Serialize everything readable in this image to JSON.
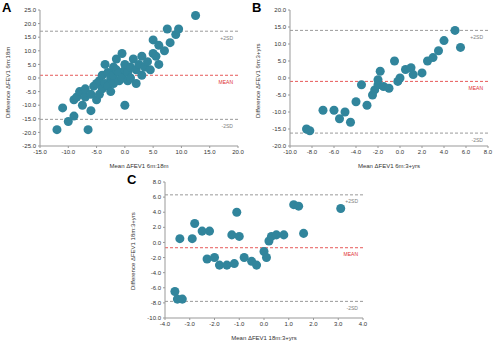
{
  "chart_data": [
    {
      "type": "scatter",
      "title": "A",
      "x_label": "Mean ΔFEV1 6m:18m",
      "y_label": "Difference ΔFEV1 6m:18m",
      "color": "#31859c",
      "marker": "circle",
      "xlim": [
        -15,
        20
      ],
      "xticks": [
        {
          "value": -15,
          "label": "-15.0"
        },
        {
          "value": -10,
          "label": "-10.0"
        },
        {
          "value": -5,
          "label": "-5.0"
        },
        {
          "value": 0,
          "label": "0.0"
        },
        {
          "value": 5,
          "label": "5.0"
        },
        {
          "value": 10,
          "label": "10.0"
        },
        {
          "value": 15,
          "label": "15.0"
        },
        {
          "value": 20,
          "label": "20.0"
        }
      ],
      "ylim": [
        -25,
        25
      ],
      "yticks": [
        {
          "value": -25,
          "label": "-25.0"
        },
        {
          "value": -20,
          "label": "-20.0"
        },
        {
          "value": -15,
          "label": "-15.0"
        },
        {
          "value": -10,
          "label": "-10.0"
        },
        {
          "value": -5,
          "label": "-5.0"
        },
        {
          "value": 0,
          "label": "0.0"
        },
        {
          "value": 5,
          "label": "5.0"
        },
        {
          "value": 10,
          "label": "10.0"
        },
        {
          "value": 15,
          "label": "15.0"
        },
        {
          "value": 20,
          "label": "20.0"
        },
        {
          "value": 25,
          "label": "25.0"
        }
      ],
      "annotations": [
        {
          "text": "+2SD",
          "value": 17.2,
          "color": "#808080"
        },
        {
          "text": "MEAN",
          "value": 1.0,
          "color": "#e03030"
        },
        {
          "text": "-2SD",
          "value": -15.2,
          "color": "#808080"
        }
      ],
      "x": [
        -12,
        -11,
        -10,
        -9,
        -9,
        -8.5,
        -8,
        -7.5,
        -7,
        -7,
        -6.5,
        -6,
        -6,
        -5.5,
        -5,
        -5,
        -4.5,
        -4.5,
        -4,
        -4,
        -3.5,
        -3.5,
        -3,
        -3,
        -2.5,
        -2.5,
        -2,
        -2,
        -2,
        -1.5,
        -1.5,
        -1,
        -1,
        -0.5,
        -0.5,
        0,
        0,
        0,
        0.5,
        0.5,
        1,
        1,
        1.5,
        2,
        2,
        2.5,
        3,
        3,
        3.5,
        4,
        4.5,
        5,
        5,
        5.5,
        6,
        6,
        7,
        7.5,
        8,
        9,
        9.5,
        12.5
      ],
      "y": [
        -19,
        -11,
        -16,
        -14,
        -8,
        -7,
        -5,
        -10,
        -7,
        -4,
        -19,
        -12,
        -6,
        -3,
        -2,
        -8,
        -1,
        -6,
        -4,
        1,
        -2,
        5,
        -3,
        2,
        0,
        -5,
        1,
        4,
        -2,
        7,
        3,
        -1,
        2,
        9,
        0,
        -10,
        3,
        5,
        -1,
        2,
        4,
        0,
        7,
        3,
        -2,
        5,
        1,
        8,
        4,
        6,
        3,
        9,
        14,
        8,
        5,
        12,
        10,
        18,
        13,
        16,
        18,
        23
      ]
    },
    {
      "type": "scatter",
      "title": "B",
      "x_label": "Mean ΔFEV1 6m:3+yrs",
      "y_label": "Difference ΔFEV1 6m:3+yrs",
      "color": "#31859c",
      "marker": "circle",
      "xlim": [
        -10,
        8
      ],
      "xticks": [
        {
          "value": -10,
          "label": "-10.0"
        },
        {
          "value": -8,
          "label": "-8.0"
        },
        {
          "value": -6,
          "label": "-6.0"
        },
        {
          "value": -4,
          "label": "-4.0"
        },
        {
          "value": -2,
          "label": "-2.0"
        },
        {
          "value": 0,
          "label": "0.0"
        },
        {
          "value": 2,
          "label": "2.0"
        },
        {
          "value": 4,
          "label": "4.0"
        },
        {
          "value": 6,
          "label": "6.0"
        },
        {
          "value": 8,
          "label": "8.0"
        }
      ],
      "ylim": [
        -20,
        20
      ],
      "yticks": [
        {
          "value": -20,
          "label": "-20.0"
        },
        {
          "value": -15,
          "label": "-15.0"
        },
        {
          "value": -10,
          "label": "-10.0"
        },
        {
          "value": -5,
          "label": "-5.0"
        },
        {
          "value": 0,
          "label": "0.0"
        },
        {
          "value": 5,
          "label": "5.0"
        },
        {
          "value": 10,
          "label": "10.0"
        },
        {
          "value": 15,
          "label": "15.0"
        },
        {
          "value": 20,
          "label": "20.0"
        }
      ],
      "annotations": [
        {
          "text": "+2SD",
          "value": 14.0,
          "color": "#808080"
        },
        {
          "text": "MEAN",
          "value": -1.0,
          "color": "#e03030"
        },
        {
          "text": "-2SD",
          "value": -16.2,
          "color": "#808080"
        }
      ],
      "x": [
        -8.5,
        -8.2,
        -7,
        -6,
        -5.5,
        -5,
        -4.5,
        -4,
        -3.5,
        -3,
        -2.5,
        -2.3,
        -2,
        -2,
        -1.8,
        -1.5,
        -1,
        -0.5,
        -0.2,
        0,
        0.5,
        1,
        1.2,
        2,
        2.5,
        3,
        3.5,
        4,
        5,
        5.5
      ],
      "y": [
        -15,
        -15.5,
        -9.5,
        -9.5,
        -12,
        -10,
        -13,
        -7,
        -2,
        -8,
        -5,
        -3.5,
        -2,
        -0.5,
        2,
        -2.5,
        -3,
        5,
        -1,
        0,
        2.5,
        3,
        1,
        1.5,
        5,
        6,
        8,
        11,
        14,
        9
      ]
    },
    {
      "type": "scatter",
      "title": "C",
      "x_label": "Mean ΔFEV1 18m:3+yrs",
      "y_label": "Difference ΔFEV1 18m:3+yrs",
      "color": "#31859c",
      "marker": "circle",
      "xlim": [
        -4,
        4
      ],
      "xticks": [
        {
          "value": -4,
          "label": "-4.0"
        },
        {
          "value": -3,
          "label": "-3.0"
        },
        {
          "value": -2,
          "label": "-2.0"
        },
        {
          "value": -1,
          "label": "-1.0"
        },
        {
          "value": 0,
          "label": "0.0"
        },
        {
          "value": 1,
          "label": "1.0"
        },
        {
          "value": 2,
          "label": "2.0"
        },
        {
          "value": 3,
          "label": "3.0"
        },
        {
          "value": 4,
          "label": "4.0"
        }
      ],
      "ylim": [
        -10,
        8
      ],
      "yticks": [
        {
          "value": -10,
          "label": "-10.0"
        },
        {
          "value": -8,
          "label": "-8.0"
        },
        {
          "value": -6,
          "label": "-6.0"
        },
        {
          "value": -4,
          "label": "-4.0"
        },
        {
          "value": -2,
          "label": "-2.0"
        },
        {
          "value": 0,
          "label": "0.0"
        },
        {
          "value": 2,
          "label": "2.0"
        },
        {
          "value": 4,
          "label": "4.0"
        },
        {
          "value": 6,
          "label": "6.0"
        },
        {
          "value": 8,
          "label": "8.0"
        }
      ],
      "annotations": [
        {
          "text": "+2SD",
          "value": 6.3,
          "color": "#808080"
        },
        {
          "text": "MEAN",
          "value": -0.7,
          "color": "#e03030"
        },
        {
          "text": "-2SD",
          "value": -7.8,
          "color": "#808080"
        }
      ],
      "x": [
        -3.6,
        -3.5,
        -3.3,
        -3.4,
        -2.9,
        -2.8,
        -2.5,
        -2.3,
        -2.2,
        -2,
        -1.8,
        -1.5,
        -1.3,
        -1.2,
        -1,
        -0.8,
        -0.5,
        -0.3,
        0,
        0.1,
        0.2,
        0.3,
        0.5,
        0.8,
        1.2,
        1.4,
        1.6,
        3.1,
        -1.1
      ],
      "y": [
        -6.5,
        -7.5,
        -7.5,
        0.5,
        0.5,
        2.5,
        1.5,
        -2.2,
        1.5,
        -2,
        -3,
        -3,
        1,
        -2.8,
        0.8,
        -2,
        -2.5,
        -3,
        -1.2,
        -2,
        0.2,
        0.8,
        1,
        1,
        5,
        4.8,
        1.2,
        4.5,
        4
      ]
    }
  ]
}
